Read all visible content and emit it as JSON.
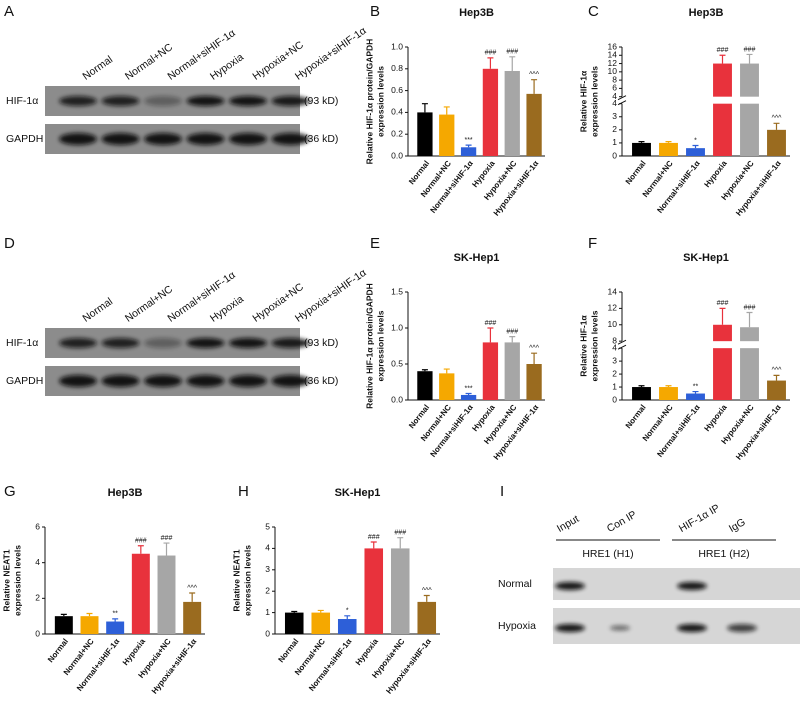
{
  "blots": [
    {
      "label": "A",
      "lanes": [
        "Normal",
        "Normal+NC",
        "Normal+siHIF-1α",
        "Hypoxia",
        "Hypoxia+NC",
        "Hypoxia+siHIF-1α"
      ],
      "rows": [
        {
          "name": "HIF-1α",
          "size": "(93 kD)"
        },
        {
          "name": "GAPDH",
          "size": "(36 kD)"
        }
      ]
    },
    {
      "label": "D",
      "lanes": [
        "Normal",
        "Normal+NC",
        "Normal+siHIF-1α",
        "Hypoxia",
        "Hypoxia+NC",
        "Hypoxia+siHIF-1α"
      ],
      "rows": [
        {
          "name": "HIF-1α",
          "size": "(93 kD)"
        },
        {
          "name": "GAPDH",
          "size": "(36 kD)"
        }
      ]
    }
  ],
  "chart_data": [
    {
      "label": "B",
      "type": "bar",
      "title": "Hep3B",
      "ylabel": [
        "Relative HIF-1α protein/GAPDH",
        "expression levels"
      ],
      "categories": [
        "Normal",
        "Normal+NC",
        "Normal+siHIF-1α",
        "Hypoxia",
        "Hypoxia+NC",
        "Hypoxia+siHIF-1α"
      ],
      "values": [
        0.4,
        0.38,
        0.08,
        0.8,
        0.78,
        0.57
      ],
      "errors": [
        0.08,
        0.07,
        0.02,
        0.1,
        0.13,
        0.13
      ],
      "colors": [
        "#000000",
        "#f5a800",
        "#2d5fd8",
        "#e8323c",
        "#a6a6a6",
        "#9a6b1f"
      ],
      "annotations": [
        null,
        null,
        "***",
        "###",
        "###",
        "^^^"
      ],
      "ylim": [
        0,
        1
      ],
      "yticks": [
        {
          "value": 0,
          "label": "0.0"
        },
        0.2,
        0.4,
        0.6,
        0.8,
        {
          "value": 1,
          "label": "1.0"
        }
      ]
    },
    {
      "label": "C",
      "type": "broken-bar",
      "title": "Hep3B",
      "ylabel": [
        "Relative HIF-1α",
        "expression levels"
      ],
      "categories": [
        "Normal",
        "Normal+NC",
        "Normal+siHIF-1α",
        "Hypoxia",
        "Hypoxia+NC",
        "Hypoxia+siHIF-1α"
      ],
      "values": [
        1.0,
        1.0,
        0.6,
        12,
        12,
        2.0
      ],
      "errors": [
        0.1,
        0.1,
        0.2,
        2.0,
        2.2,
        0.5
      ],
      "colors": [
        "#000000",
        "#f5a800",
        "#2d5fd8",
        "#e8323c",
        "#a6a6a6",
        "#9a6b1f"
      ],
      "annotations": [
        null,
        null,
        "*",
        "###",
        "###",
        "^^^"
      ],
      "ylim_lower": [
        0,
        4
      ],
      "yticks_lower": [
        0,
        1,
        2,
        3,
        4
      ],
      "ylim_upper": [
        4,
        16
      ],
      "yticks_upper": [
        4,
        6,
        8,
        10,
        12,
        14,
        16
      ]
    },
    {
      "label": "E",
      "type": "bar",
      "title": "SK-Hep1",
      "ylabel": [
        "Relative HIF-1α protein/GAPDH",
        "expression levels"
      ],
      "categories": [
        "Normal",
        "Normal+NC",
        "Normal+siHIF-1α",
        "Hypoxia",
        "Hypoxia+NC",
        "Hypoxia+siHIF-1α"
      ],
      "values": [
        0.4,
        0.37,
        0.07,
        0.8,
        0.8,
        0.5
      ],
      "errors": [
        0.02,
        0.06,
        0.02,
        0.2,
        0.08,
        0.15
      ],
      "colors": [
        "#000000",
        "#f5a800",
        "#2d5fd8",
        "#e8323c",
        "#a6a6a6",
        "#9a6b1f"
      ],
      "annotations": [
        null,
        null,
        "***",
        "###",
        "###",
        "^^^"
      ],
      "ylim": [
        0,
        1.5
      ],
      "yticks": [
        {
          "value": 0,
          "label": "0.0"
        },
        0.5,
        {
          "value": 1,
          "label": "1.0"
        },
        1.5
      ]
    },
    {
      "label": "F",
      "type": "broken-bar",
      "title": "SK-Hep1",
      "ylabel": [
        "Relative HIF-1α",
        "expression levels"
      ],
      "categories": [
        "Normal",
        "Normal+NC",
        "Normal+siHIF-1α",
        "Hypoxia",
        "Hypoxia+NC",
        "Hypoxia+siHIF-1α"
      ],
      "values": [
        1.0,
        1.0,
        0.5,
        10,
        9.7,
        1.5
      ],
      "errors": [
        0.1,
        0.1,
        0.15,
        2.0,
        1.8,
        0.4
      ],
      "colors": [
        "#000000",
        "#f5a800",
        "#2d5fd8",
        "#e8323c",
        "#a6a6a6",
        "#9a6b1f"
      ],
      "annotations": [
        null,
        null,
        "**",
        "###",
        "###",
        "^^^"
      ],
      "ylim_lower": [
        0,
        4
      ],
      "yticks_lower": [
        0,
        1,
        2,
        3,
        4
      ],
      "ylim_upper": [
        8,
        14
      ],
      "yticks_upper": [
        8,
        10,
        12,
        14
      ]
    },
    {
      "label": "G",
      "type": "bar",
      "title": "Hep3B",
      "ylabel": [
        "Relative NEAT1",
        "expression levels"
      ],
      "categories": [
        "Normal",
        "Normal+NC",
        "Normal+siHIF-1α",
        "Hypoxia",
        "Hypoxia+NC",
        "Hypoxia+siHIF-1α"
      ],
      "values": [
        1.0,
        1.0,
        0.7,
        4.5,
        4.4,
        1.8
      ],
      "errors": [
        0.1,
        0.15,
        0.15,
        0.45,
        0.7,
        0.5
      ],
      "colors": [
        "#000000",
        "#f5a800",
        "#2d5fd8",
        "#e8323c",
        "#a6a6a6",
        "#9a6b1f"
      ],
      "annotations": [
        null,
        null,
        "**",
        "###",
        "###",
        "^^^"
      ],
      "ylim": [
        0,
        6
      ],
      "yticks": [
        0,
        2,
        4,
        6
      ]
    },
    {
      "label": "H",
      "type": "bar",
      "title": "SK-Hep1",
      "ylabel": [
        "Relative NEAT1",
        "expression levels"
      ],
      "categories": [
        "Normal",
        "Normal+NC",
        "Normal+siHIF-1α",
        "Hypoxia",
        "Hypoxia+NC",
        "Hypoxia+siHIF-1α"
      ],
      "values": [
        1.0,
        1.0,
        0.7,
        4.0,
        4.0,
        1.5
      ],
      "errors": [
        0.05,
        0.1,
        0.15,
        0.3,
        0.5,
        0.3
      ],
      "colors": [
        "#000000",
        "#f5a800",
        "#2d5fd8",
        "#e8323c",
        "#a6a6a6",
        "#9a6b1f"
      ],
      "annotations": [
        null,
        null,
        "*",
        "###",
        "###",
        "^^^"
      ],
      "ylim": [
        0,
        5
      ],
      "yticks": [
        0,
        1,
        2,
        3,
        4,
        5
      ]
    }
  ],
  "chip": {
    "label": "I",
    "columns": [
      "Input",
      "Con IP",
      "HIF-1α IP",
      "IgG"
    ],
    "groups": [
      "HRE1 (H1)",
      "HRE1 (H2)"
    ],
    "rows": [
      "Normal",
      "Hypoxia"
    ]
  }
}
